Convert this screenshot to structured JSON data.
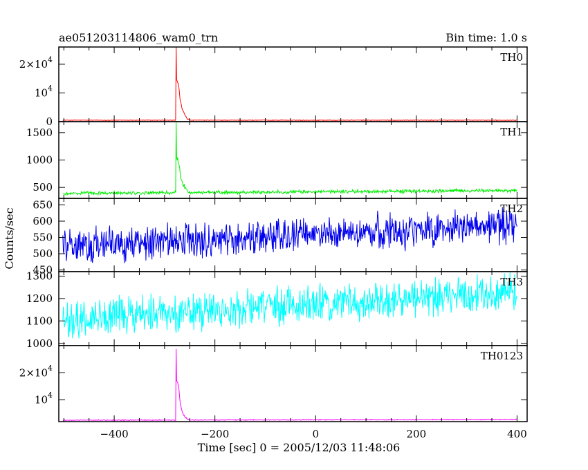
{
  "header": {
    "title": "ae051203114806_wam0_trn",
    "bin_time": "Bin time: 1.0 s"
  },
  "axes": {
    "xlabel": "Time [sec] 0 = 2005/12/03 11:48:06",
    "ylabel": "Counts/sec"
  },
  "chart_data": {
    "type": "line",
    "xlim": [
      -510,
      420
    ],
    "x_ticks": [
      -400,
      -200,
      0,
      200,
      400
    ],
    "x_tick_labels": [
      "−400",
      "−200",
      "0",
      "200",
      "400"
    ],
    "xlabel": "Time [sec] 0 = 2005/12/03 11:48:06",
    "ylabel": "Counts/sec",
    "bin_time_s": 1.0,
    "panels": [
      {
        "name": "TH0",
        "color": "#ff0000",
        "ylim": [
          0,
          26000
        ],
        "y_ticks": [
          0,
          10000,
          20000
        ],
        "y_tick_labels": [
          {
            "base": "0",
            "exp": ""
          },
          {
            "base": "10",
            "exp": "4"
          },
          {
            "base": "2×10",
            "exp": "4"
          }
        ],
        "baseline": 500,
        "noise": 150,
        "trend": 0,
        "peak": {
          "x": -277,
          "value": 26000,
          "shoulder": [
            [
              -276,
              14500
            ],
            [
              -272,
              12800
            ],
            [
              -269,
              7500
            ],
            [
              -265,
              4500
            ],
            [
              -260,
              2500
            ],
            [
              -255,
              1000
            ],
            [
              -250,
              550
            ]
          ]
        }
      },
      {
        "name": "TH1",
        "color": "#00ee00",
        "ylim": [
          300,
          1700
        ],
        "y_ticks": [
          500,
          1000,
          1500
        ],
        "y_tick_labels": [
          {
            "base": "500",
            "exp": ""
          },
          {
            "base": "1000",
            "exp": ""
          },
          {
            "base": "1500",
            "exp": ""
          }
        ],
        "baseline": 390,
        "noise": 40,
        "trend": 0.06,
        "peak": {
          "x": -277,
          "value": 1700,
          "shoulder": [
            [
              -276,
              1050
            ],
            [
              -272,
              960
            ],
            [
              -268,
              700
            ],
            [
              -264,
              560
            ],
            [
              -258,
              470
            ],
            [
              -250,
              410
            ]
          ]
        }
      },
      {
        "name": "TH2",
        "color": "#0000ee",
        "ylim": [
          445,
          670
        ],
        "y_ticks": [
          450,
          500,
          550,
          600,
          650
        ],
        "y_tick_labels": [
          {
            "base": "450",
            "exp": ""
          },
          {
            "base": "500",
            "exp": ""
          },
          {
            "base": "550",
            "exp": ""
          },
          {
            "base": "600",
            "exp": ""
          },
          {
            "base": "650",
            "exp": ""
          }
        ],
        "baseline": 520,
        "noise": 65,
        "trend": 0.075,
        "peak": null
      },
      {
        "name": "TH3",
        "color": "#00ffff",
        "ylim": [
          990,
          1320
        ],
        "y_ticks": [
          1000,
          1100,
          1200,
          1300
        ],
        "y_tick_labels": [
          {
            "base": "1000",
            "exp": ""
          },
          {
            "base": "1100",
            "exp": ""
          },
          {
            "base": "1200",
            "exp": ""
          },
          {
            "base": "1300",
            "exp": ""
          }
        ],
        "baseline": 1105,
        "noise": 100,
        "trend": 0.14,
        "peak": null
      },
      {
        "name": "TH0123",
        "color": "#ff00ff",
        "ylim": [
          2000,
          30000
        ],
        "y_ticks": [
          10000,
          20000
        ],
        "y_tick_labels": [
          {
            "base": "10",
            "exp": "4"
          },
          {
            "base": "2×10",
            "exp": "4"
          }
        ],
        "baseline": 2500,
        "noise": 200,
        "trend": 0.3,
        "peak": {
          "x": -277,
          "value": 29000,
          "shoulder": [
            [
              -276,
              17500
            ],
            [
              -272,
              15000
            ],
            [
              -269,
              9000
            ],
            [
              -265,
              5500
            ],
            [
              -260,
              3800
            ],
            [
              -255,
              2900
            ],
            [
              -250,
              2600
            ]
          ]
        }
      }
    ]
  }
}
